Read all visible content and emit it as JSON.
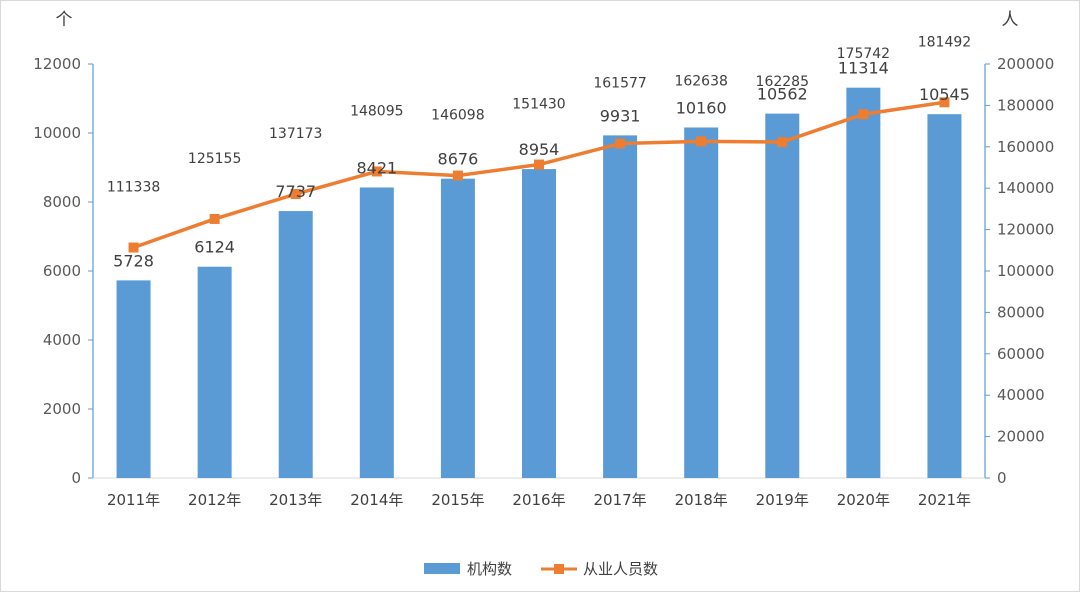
{
  "chart_data": {
    "type": "bar+line",
    "categories": [
      "2011年",
      "2012年",
      "2013年",
      "2014年",
      "2015年",
      "2016年",
      "2017年",
      "2018年",
      "2019年",
      "2020年",
      "2021年"
    ],
    "series": [
      {
        "name": "机构数",
        "type": "bar",
        "axis": "left",
        "color": "#5B9BD5",
        "values": [
          5728,
          6124,
          7737,
          8421,
          8676,
          8954,
          9931,
          10160,
          10562,
          11314,
          10545
        ]
      },
      {
        "name": "从业人员数",
        "type": "line",
        "axis": "right",
        "color": "#ED7D31",
        "values": [
          111338,
          125155,
          137173,
          148095,
          146098,
          151430,
          161577,
          162638,
          162285,
          175742,
          181492
        ]
      }
    ],
    "left_axis": {
      "unit": "个",
      "min": 0,
      "max": 12000,
      "ticks": [
        0,
        2000,
        4000,
        6000,
        8000,
        10000,
        12000
      ]
    },
    "right_axis": {
      "unit": "人",
      "min": 0,
      "max": 200000,
      "ticks": [
        0,
        20000,
        40000,
        60000,
        80000,
        100000,
        120000,
        140000,
        160000,
        180000,
        200000
      ]
    },
    "legend_position": "bottom",
    "grid": false
  }
}
